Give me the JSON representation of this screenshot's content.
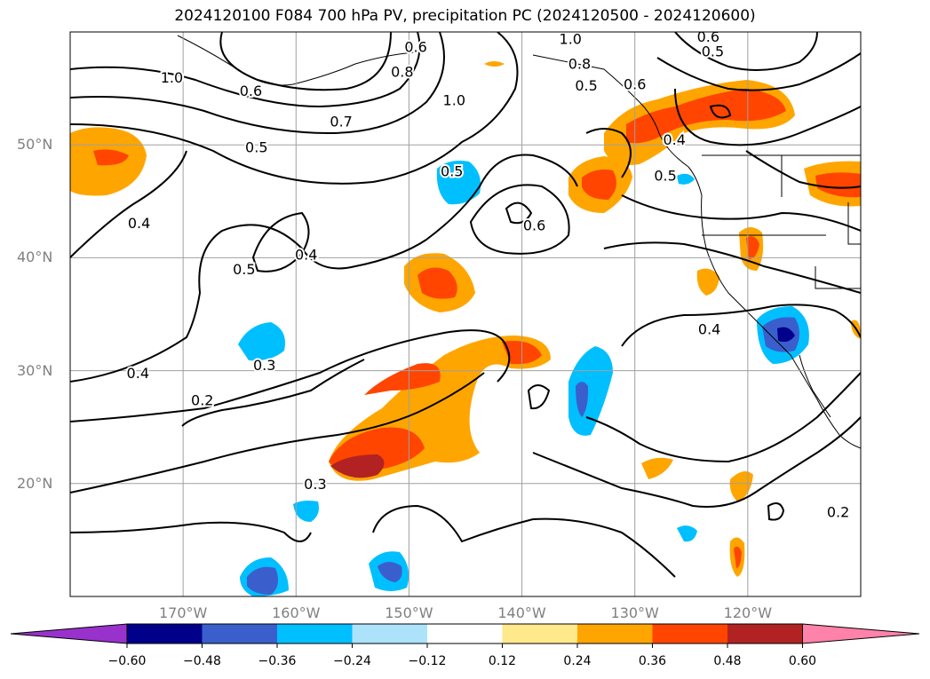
{
  "chart_data": {
    "type": "contour",
    "title": "2024120100 F084 700 hPa PV, precipitation PC (2024120500 - 2024120600)",
    "map_extent": {
      "lon": [
        -180,
        -110
      ],
      "lat": [
        10,
        60
      ]
    },
    "grid": true,
    "lat_ticks": [
      "50°N",
      "40°N",
      "30°N",
      "20°N"
    ],
    "lat_values": [
      50,
      40,
      30,
      20
    ],
    "lon_ticks": [
      "170°W",
      "160°W",
      "150°W",
      "140°W",
      "130°W",
      "120°W"
    ],
    "lon_values": [
      -170,
      -160,
      -150,
      -140,
      -130,
      -120
    ],
    "contour_labels": [
      {
        "text": "1.0",
        "lon": -171.0,
        "lat": 56.0
      },
      {
        "text": "0.8",
        "lon": -150.6,
        "lat": 56.5
      },
      {
        "text": "1.0",
        "lon": -146.0,
        "lat": 54.0
      },
      {
        "text": "0.6",
        "lon": -164.0,
        "lat": 54.8
      },
      {
        "text": "0.7",
        "lon": -156.0,
        "lat": 52.1
      },
      {
        "text": "0.5",
        "lon": -163.5,
        "lat": 49.8
      },
      {
        "text": "0.5",
        "lon": -146.2,
        "lat": 47.7
      },
      {
        "text": "0.4",
        "lon": -173.9,
        "lat": 43.1
      },
      {
        "text": "0.4",
        "lon": -159.1,
        "lat": 40.3
      },
      {
        "text": "0.5",
        "lon": -164.6,
        "lat": 39.0
      },
      {
        "text": "0.6",
        "lon": -138.9,
        "lat": 42.9
      },
      {
        "text": "0.4",
        "lon": -123.4,
        "lat": 33.7
      },
      {
        "text": "0.3",
        "lon": -162.8,
        "lat": 30.5
      },
      {
        "text": "0.4",
        "lon": -174.0,
        "lat": 29.8
      },
      {
        "text": "0.2",
        "lon": -168.3,
        "lat": 27.4
      },
      {
        "text": "0.3",
        "lon": -158.3,
        "lat": 20.0
      },
      {
        "text": "0.2",
        "lon": -112.0,
        "lat": 17.5
      },
      {
        "text": "0.6",
        "lon": -149.4,
        "lat": 58.7
      },
      {
        "text": "1.0",
        "lon": -135.7,
        "lat": 59.4
      },
      {
        "text": "0.8",
        "lon": -134.9,
        "lat": 57.2
      },
      {
        "text": "0.5",
        "lon": -134.3,
        "lat": 55.3
      },
      {
        "text": "0.6",
        "lon": -130.0,
        "lat": 55.4
      },
      {
        "text": "0.4",
        "lon": -126.5,
        "lat": 50.5
      },
      {
        "text": "0.5",
        "lon": -127.3,
        "lat": 47.3
      },
      {
        "text": "0.5",
        "lon": -123.1,
        "lat": 58.3
      },
      {
        "text": "0.6",
        "lon": -123.5,
        "lat": 59.6
      }
    ],
    "colorbar": {
      "ticks": [
        "−0.60",
        "−0.48",
        "−0.36",
        "−0.24",
        "−0.12",
        "0.12",
        "0.24",
        "0.36",
        "0.48",
        "0.60"
      ],
      "colors": [
        "#9932CC",
        "#00008B",
        "#3A5FCD",
        "#00BFFF",
        "#ADE2FB",
        "#FFFFFF",
        "#FFE98A",
        "#FFA500",
        "#FF4500",
        "#B22222",
        "#FF82AB"
      ]
    }
  }
}
